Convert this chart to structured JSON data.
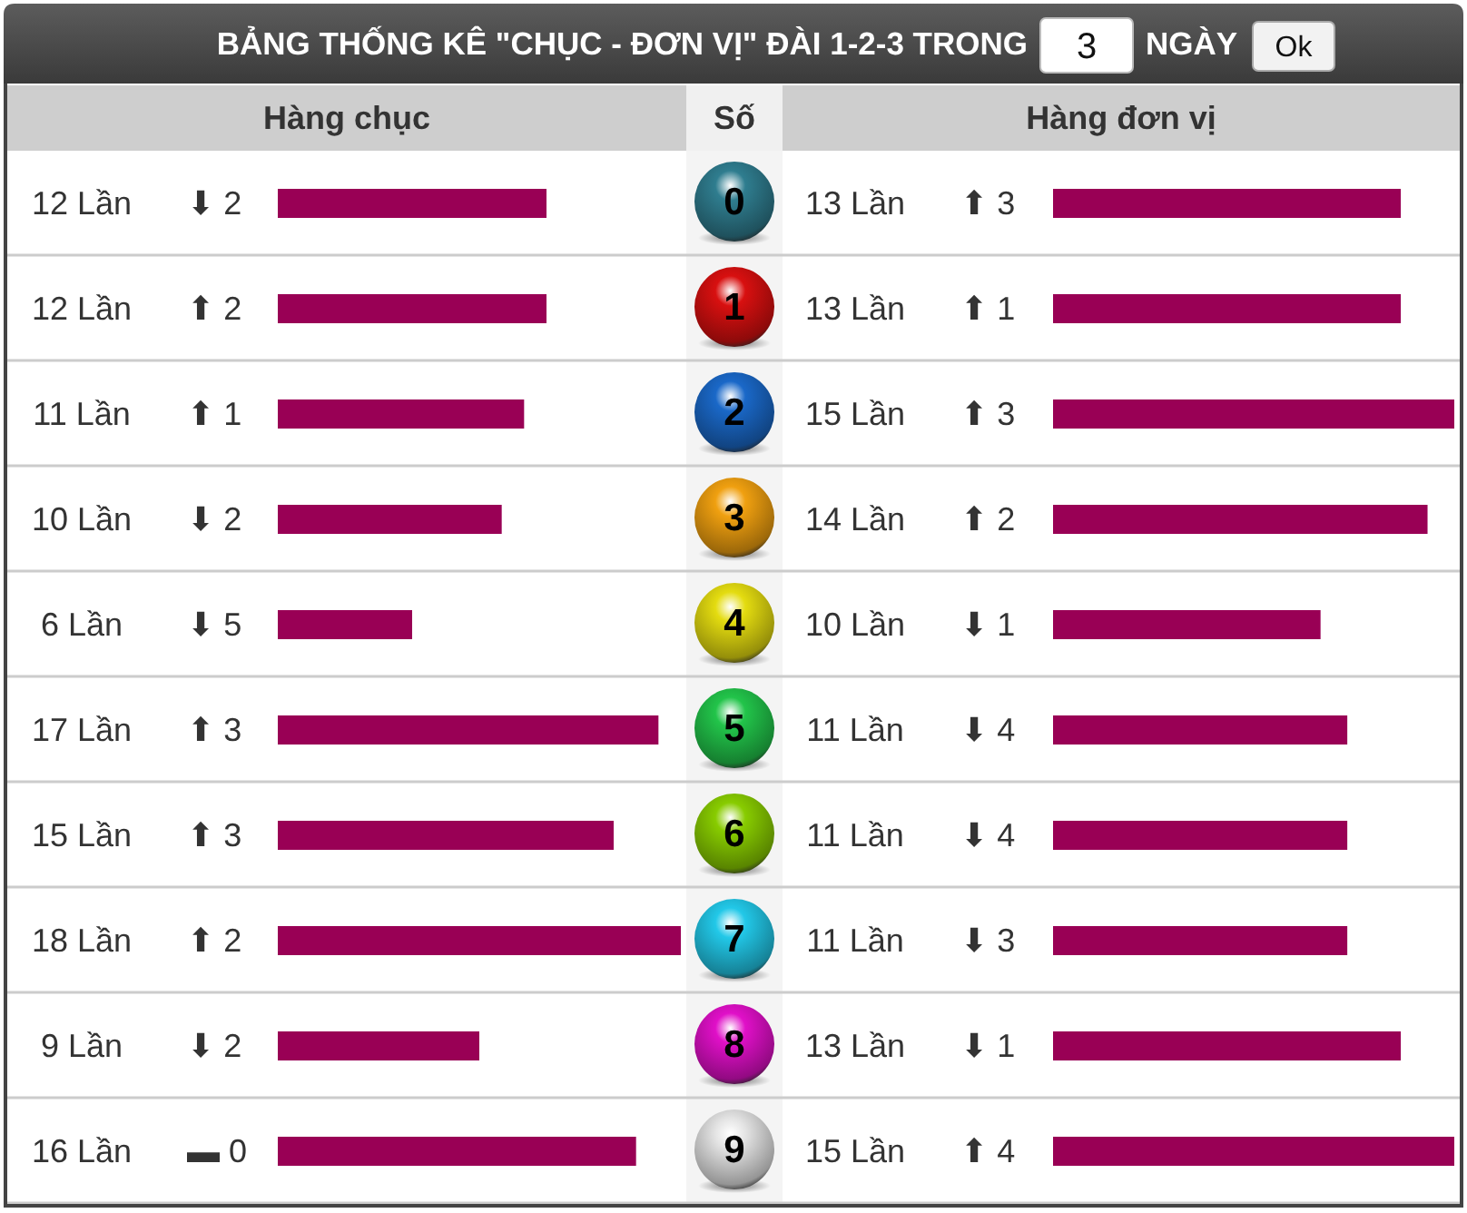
{
  "chart_data": [
    {
      "type": "other",
      "title": "BẢNG THỐNG KÊ \"CHỤC - ĐƠN VỊ\" ĐÀI 1-2-3 TRONG",
      "annotations": [
        "3",
        "NGÀY",
        "Ok"
      ]
    },
    {
      "type": "bar",
      "orientation": "horizontal",
      "title": "Hàng chục",
      "ylabel": "Số",
      "categories": [
        "0",
        "1",
        "2",
        "3",
        "4",
        "5",
        "6",
        "7",
        "8",
        "9"
      ],
      "values": [
        12,
        12,
        11,
        10,
        6,
        17,
        15,
        18,
        9,
        16
      ],
      "color": "#990055",
      "value_labels": [
        "12 Lần",
        "12 Lần",
        "11 Lần",
        "10 Lần",
        "6 Lần",
        "17 Lần",
        "15 Lần",
        "18 Lần",
        "9 Lần",
        "16 Lần"
      ],
      "annotations": [
        "⬇ 2",
        "⬆ 2",
        "⬆ 1",
        "⬇ 2",
        "⬇ 5",
        "⬆ 3",
        "⬆ 3",
        "⬆ 2",
        "⬇ 2",
        "▬ 0"
      ]
    },
    {
      "type": "bar",
      "orientation": "horizontal",
      "title": "Hàng đơn vị",
      "categories": [
        "0",
        "1",
        "2",
        "3",
        "4",
        "5",
        "6",
        "7",
        "8",
        "9"
      ],
      "values": [
        13,
        13,
        15,
        14,
        10,
        11,
        11,
        11,
        13,
        15
      ],
      "color": "#990055",
      "value_labels": [
        "13 Lần",
        "13 Lần",
        "15 Lần",
        "14 Lần",
        "10 Lần",
        "11 Lần",
        "11 Lần",
        "11 Lần",
        "13 Lần",
        "15 Lần"
      ],
      "annotations": [
        "⬆ 3",
        "⬆ 1",
        "⬆ 3",
        "⬆ 2",
        "⬇ 1",
        "⬇ 4",
        "⬇ 4",
        "⬇ 3",
        "⬇ 1",
        "⬆ 4"
      ],
      "tick_labels": false
    }
  ]
}
